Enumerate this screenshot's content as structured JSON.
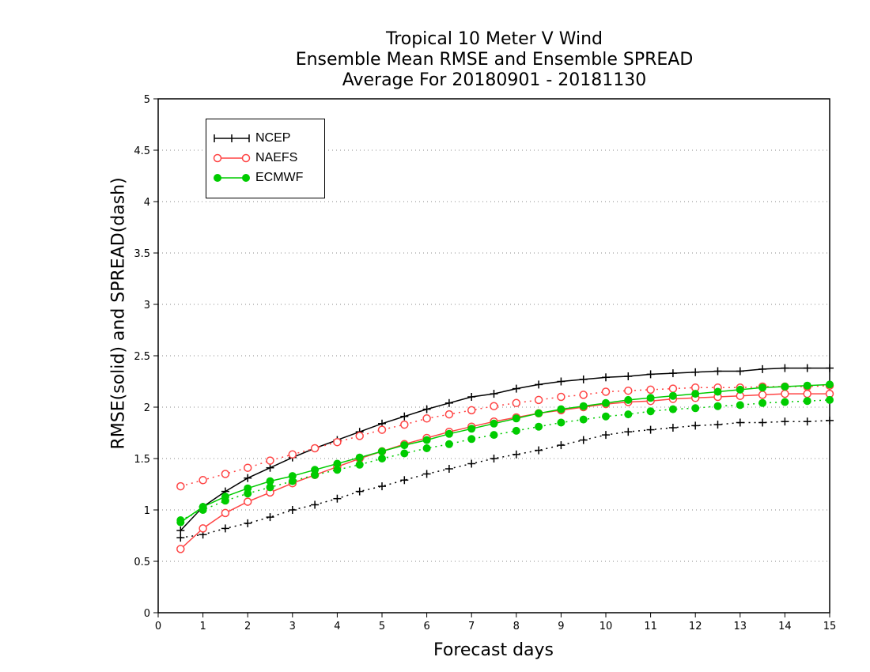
{
  "chart_data": {
    "type": "line",
    "title": [
      "Tropical 10 Meter V Wind",
      "Ensemble Mean RMSE and Ensemble SPREAD",
      "Average For 20180901 - 20181130"
    ],
    "xlabel": "Forecast days",
    "ylabel": "RMSE(solid) and SPREAD(dash)",
    "xlim": [
      0,
      15
    ],
    "ylim": [
      0,
      5
    ],
    "xticks": [
      "0",
      "1",
      "2",
      "3",
      "4",
      "5",
      "6",
      "7",
      "8",
      "9",
      "10",
      "11",
      "12",
      "13",
      "14",
      "15"
    ],
    "yticks": [
      "0",
      "0.5",
      "1",
      "1.5",
      "2",
      "2.5",
      "3",
      "3.5",
      "4",
      "4.5",
      "5"
    ],
    "grid": "horizontal dotted",
    "legend_position": "top-left",
    "x": [
      0.5,
      1,
      1.5,
      2,
      2.5,
      3,
      3.5,
      4,
      4.5,
      5,
      5.5,
      6,
      6.5,
      7,
      7.5,
      8,
      8.5,
      9,
      9.5,
      10,
      10.5,
      11,
      11.5,
      12,
      12.5,
      13,
      13.5,
      14,
      14.5,
      15
    ],
    "series": [
      {
        "name": "NCEP",
        "metric": "RMSE",
        "style": "solid",
        "marker": "plus",
        "color": "#000000",
        "values": [
          0.8,
          1.03,
          1.18,
          1.31,
          1.41,
          1.51,
          1.6,
          1.68,
          1.76,
          1.84,
          1.91,
          1.98,
          2.04,
          2.1,
          2.13,
          2.18,
          2.22,
          2.25,
          2.27,
          2.29,
          2.3,
          2.32,
          2.33,
          2.34,
          2.35,
          2.35,
          2.37,
          2.38,
          2.38,
          2.38
        ]
      },
      {
        "name": "NCEP",
        "metric": "SPREAD",
        "style": "dash",
        "marker": "plus",
        "color": "#000000",
        "values": [
          0.73,
          0.76,
          0.82,
          0.87,
          0.93,
          1.0,
          1.05,
          1.11,
          1.18,
          1.23,
          1.29,
          1.35,
          1.4,
          1.45,
          1.5,
          1.54,
          1.58,
          1.63,
          1.68,
          1.73,
          1.76,
          1.78,
          1.8,
          1.82,
          1.83,
          1.85,
          1.85,
          1.86,
          1.86,
          1.87
        ]
      },
      {
        "name": "NAEFS",
        "metric": "RMSE",
        "style": "solid",
        "marker": "open-circle",
        "color": "#ff4444",
        "values": [
          0.62,
          0.82,
          0.97,
          1.08,
          1.17,
          1.26,
          1.34,
          1.42,
          1.5,
          1.57,
          1.64,
          1.7,
          1.76,
          1.81,
          1.86,
          1.9,
          1.94,
          1.97,
          2.0,
          2.03,
          2.05,
          2.06,
          2.08,
          2.09,
          2.1,
          2.11,
          2.12,
          2.13,
          2.13,
          2.13
        ]
      },
      {
        "name": "NAEFS",
        "metric": "SPREAD",
        "style": "dash",
        "marker": "open-circle",
        "color": "#ff4444",
        "values": [
          1.23,
          1.29,
          1.35,
          1.41,
          1.48,
          1.54,
          1.6,
          1.66,
          1.72,
          1.78,
          1.83,
          1.89,
          1.93,
          1.97,
          2.01,
          2.04,
          2.07,
          2.1,
          2.12,
          2.15,
          2.16,
          2.17,
          2.18,
          2.19,
          2.19,
          2.19,
          2.2,
          2.2,
          2.2,
          2.21
        ]
      },
      {
        "name": "ECMWF",
        "metric": "RMSE",
        "style": "solid",
        "marker": "filled-circle",
        "color": "#00cc00",
        "values": [
          0.88,
          1.03,
          1.13,
          1.21,
          1.28,
          1.33,
          1.39,
          1.45,
          1.51,
          1.57,
          1.63,
          1.68,
          1.74,
          1.79,
          1.84,
          1.89,
          1.94,
          1.98,
          2.01,
          2.04,
          2.07,
          2.09,
          2.11,
          2.13,
          2.15,
          2.17,
          2.19,
          2.2,
          2.21,
          2.22
        ]
      },
      {
        "name": "ECMWF",
        "metric": "SPREAD",
        "style": "dash",
        "marker": "filled-circle",
        "color": "#00cc00",
        "values": [
          0.9,
          1.0,
          1.09,
          1.16,
          1.22,
          1.28,
          1.34,
          1.39,
          1.44,
          1.5,
          1.55,
          1.6,
          1.64,
          1.69,
          1.73,
          1.77,
          1.81,
          1.85,
          1.88,
          1.91,
          1.93,
          1.96,
          1.98,
          1.99,
          2.01,
          2.02,
          2.04,
          2.05,
          2.06,
          2.07
        ]
      }
    ]
  },
  "legend": {
    "items": [
      {
        "label": "NCEP",
        "marker": "plus",
        "color": "#000000"
      },
      {
        "label": "NAEFS",
        "marker": "open-circle",
        "color": "#ff4444"
      },
      {
        "label": "ECMWF",
        "marker": "filled-circle",
        "color": "#00cc00"
      }
    ]
  }
}
